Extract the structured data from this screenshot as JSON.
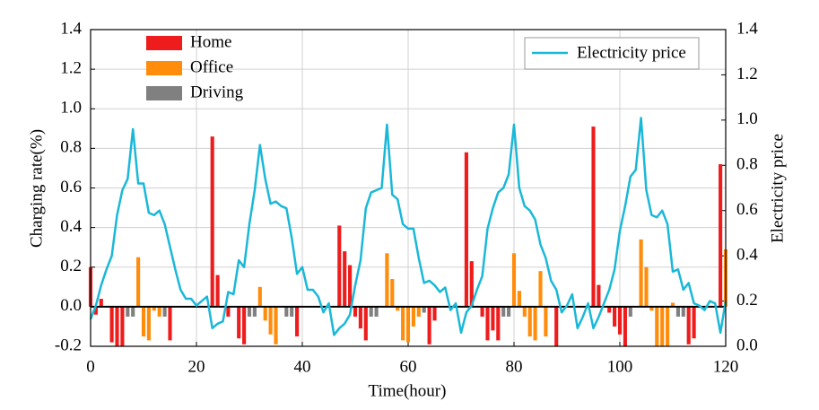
{
  "chart_data": {
    "type": "bar-line",
    "xlabel": "Time(hour)",
    "ylabel": "Charging rate(%)",
    "y2label": "Electricity price",
    "xlim": [
      0,
      120
    ],
    "xticks": [
      0,
      20,
      40,
      60,
      80,
      100,
      120
    ],
    "ylim": [
      -0.2,
      1.4
    ],
    "yticks": [
      -0.2,
      {
        "value": 0,
        "label": "0.0"
      },
      0.2,
      0.4,
      0.6,
      0.8,
      {
        "value": 1,
        "label": "1.0"
      },
      1.2,
      1.4
    ],
    "y2lim": [
      0,
      1.4
    ],
    "y2ticks": [
      {
        "value": 0,
        "label": "0.0"
      },
      0.2,
      0.4,
      0.6,
      0.8,
      {
        "value": 1,
        "label": "1.0"
      },
      1.2,
      1.4
    ],
    "grid": true,
    "series": [
      {
        "name": "Home",
        "color": "#ee1c1c",
        "kind": "bar",
        "x": [
          0,
          1,
          2,
          4,
          5,
          6,
          15,
          23,
          24,
          26,
          28,
          29,
          39,
          47,
          48,
          49,
          50,
          51,
          52,
          64,
          65,
          71,
          72,
          74,
          75,
          76,
          77,
          88,
          95,
          96,
          98,
          99,
          100,
          101,
          113,
          114,
          119
        ],
        "values": [
          0.2,
          -0.04,
          0.04,
          -0.18,
          -0.2,
          -0.2,
          -0.17,
          0.86,
          0.16,
          -0.05,
          -0.16,
          -0.19,
          -0.15,
          0.41,
          0.28,
          0.21,
          -0.05,
          -0.11,
          -0.17,
          -0.19,
          -0.07,
          0.78,
          0.23,
          -0.05,
          -0.17,
          -0.12,
          -0.17,
          -0.2,
          0.91,
          0.11,
          -0.03,
          -0.1,
          -0.14,
          -0.2,
          -0.19,
          -0.16,
          0.72
        ]
      },
      {
        "name": "Office",
        "color": "#ff8c0a",
        "kind": "bar",
        "x": [
          9,
          10,
          11,
          12,
          13,
          32,
          33,
          34,
          35,
          56,
          57,
          58,
          59,
          60,
          61,
          62,
          80,
          81,
          82,
          83,
          84,
          85,
          86,
          104,
          105,
          106,
          107,
          108,
          109,
          110,
          120
        ],
        "values": [
          0.25,
          -0.15,
          -0.17,
          -0.02,
          -0.05,
          0.1,
          -0.07,
          -0.14,
          -0.19,
          0.27,
          0.14,
          -0.02,
          -0.17,
          -0.18,
          -0.1,
          -0.05,
          0.27,
          0.08,
          -0.05,
          -0.15,
          -0.17,
          0.18,
          -0.15,
          0.34,
          0.2,
          -0.02,
          -0.2,
          -0.2,
          -0.2,
          0.02,
          0.29
        ]
      },
      {
        "name": "Driving",
        "color": "#808080",
        "kind": "bar",
        "x": [
          7,
          8,
          14,
          30,
          31,
          37,
          38,
          53,
          54,
          63,
          78,
          79,
          102,
          111,
          112
        ],
        "values": [
          -0.05,
          -0.05,
          -0.05,
          -0.05,
          -0.05,
          -0.05,
          -0.05,
          -0.05,
          -0.05,
          -0.03,
          -0.05,
          -0.05,
          -0.05,
          -0.05,
          -0.05
        ]
      },
      {
        "name": "Electricity price",
        "color": "#1ab8d8",
        "kind": "line",
        "axis": "y2",
        "x": [
          0,
          1,
          2,
          3,
          4,
          5,
          6,
          7,
          8,
          9,
          10,
          11,
          12,
          13,
          14,
          15,
          16,
          17,
          18,
          19,
          20,
          21,
          22,
          23,
          24,
          25,
          26,
          27,
          28,
          29,
          30,
          31,
          32,
          33,
          34,
          35,
          36,
          37,
          38,
          39,
          40,
          41,
          42,
          43,
          44,
          45,
          46,
          47,
          48,
          49,
          50,
          51,
          52,
          53,
          54,
          55,
          56,
          57,
          58,
          59,
          60,
          61,
          62,
          63,
          64,
          65,
          66,
          67,
          68,
          69,
          70,
          71,
          72,
          73,
          74,
          75,
          76,
          77,
          78,
          79,
          80,
          81,
          82,
          83,
          84,
          85,
          86,
          87,
          88,
          89,
          90,
          91,
          92,
          93,
          94,
          95,
          96,
          97,
          98,
          99,
          100,
          101,
          102,
          103,
          104,
          105,
          106,
          107,
          108,
          109,
          110,
          111,
          112,
          113,
          114,
          115,
          116,
          117,
          118,
          119,
          120
        ],
        "values": [
          0.12,
          0.18,
          0.27,
          0.34,
          0.4,
          0.58,
          0.69,
          0.74,
          0.96,
          0.72,
          0.72,
          0.59,
          0.58,
          0.6,
          0.54,
          0.44,
          0.34,
          0.25,
          0.21,
          0.21,
          0.18,
          0.2,
          0.22,
          0.08,
          0.1,
          0.11,
          0.24,
          0.23,
          0.38,
          0.35,
          0.54,
          0.69,
          0.89,
          0.74,
          0.63,
          0.64,
          0.62,
          0.61,
          0.48,
          0.32,
          0.35,
          0.25,
          0.25,
          0.22,
          0.15,
          0.19,
          0.05,
          0.08,
          0.1,
          0.14,
          0.27,
          0.38,
          0.61,
          0.68,
          0.69,
          0.7,
          0.98,
          0.67,
          0.65,
          0.54,
          0.52,
          0.52,
          0.39,
          0.28,
          0.29,
          0.27,
          0.24,
          0.26,
          0.16,
          0.19,
          0.06,
          0.15,
          0.18,
          0.25,
          0.31,
          0.52,
          0.61,
          0.68,
          0.7,
          0.76,
          0.98,
          0.7,
          0.62,
          0.6,
          0.56,
          0.45,
          0.39,
          0.29,
          0.25,
          0.15,
          0.18,
          0.23,
          0.08,
          0.13,
          0.19,
          0.08,
          0.13,
          0.19,
          0.25,
          0.34,
          0.51,
          0.62,
          0.75,
          0.78,
          1.01,
          0.69,
          0.58,
          0.57,
          0.6,
          0.54,
          0.33,
          0.34,
          0.25,
          0.28,
          0.19,
          0.18,
          0.16,
          0.2,
          0.19,
          0.06,
          0.2
        ]
      }
    ]
  }
}
